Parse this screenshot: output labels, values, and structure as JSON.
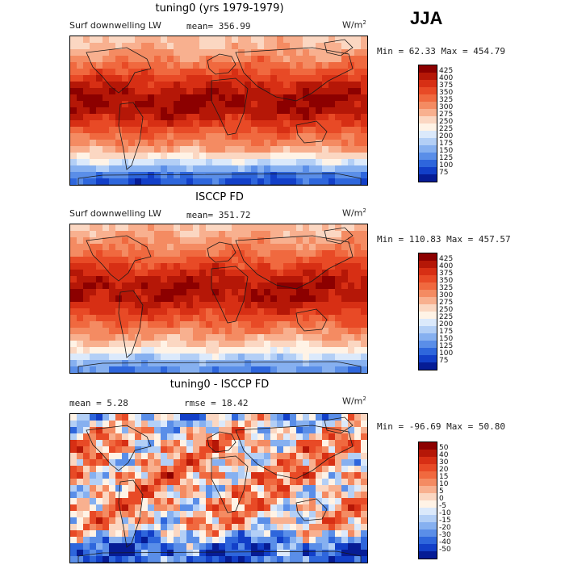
{
  "season": "JJA",
  "panels": [
    {
      "title": "tuning0 (yrs 1979-1979)",
      "variable": "Surf downwelling LW",
      "mean_text": "mean= 356.99",
      "rmse_text": "",
      "units": "W/m",
      "units_sup": "2",
      "minmax": "Min =  62.33 Max = 454.79",
      "colorbar": {
        "labels": [
          "425",
          "400",
          "375",
          "350",
          "325",
          "300",
          "275",
          "250",
          "225",
          "200",
          "175",
          "150",
          "125",
          "100",
          "75"
        ],
        "colors": [
          "#8c0000",
          "#b51707",
          "#d72f14",
          "#e84a26",
          "#f0693f",
          "#f48b62",
          "#f8b08f",
          "#fbd7c2",
          "#fff3e6",
          "#dbe9fb",
          "#b3cff6",
          "#86b0f0",
          "#5a8ee8",
          "#2e66dc",
          "#123fc8",
          "#061c95"
        ]
      },
      "chart_data": {
        "type": "heatmap",
        "title": "tuning0 (yrs 1979-1979)",
        "variable": "Surf downwelling LW",
        "units": "W/m2",
        "mean": 356.99,
        "min": 62.33,
        "max": 454.79,
        "levels": [
          75,
          100,
          125,
          150,
          175,
          200,
          225,
          250,
          275,
          300,
          325,
          350,
          375,
          400,
          425
        ],
        "zonal_profile": {
          "lat": [
            -90,
            -75,
            -60,
            -45,
            -30,
            -15,
            0,
            15,
            30,
            45,
            60,
            75,
            90
          ],
          "value": [
            90,
            130,
            230,
            300,
            340,
            380,
            420,
            425,
            400,
            360,
            320,
            290,
            270
          ]
        }
      }
    },
    {
      "title": "ISCCP FD",
      "variable": "Surf downwelling LW",
      "mean_text": "mean= 351.72",
      "rmse_text": "",
      "units": "W/m",
      "units_sup": "2",
      "minmax": "Min = 110.83 Max = 457.57",
      "colorbar": {
        "labels": [
          "425",
          "400",
          "375",
          "350",
          "325",
          "300",
          "275",
          "250",
          "225",
          "200",
          "175",
          "150",
          "125",
          "100",
          "75"
        ],
        "colors": [
          "#8c0000",
          "#b51707",
          "#d72f14",
          "#e84a26",
          "#f0693f",
          "#f48b62",
          "#f8b08f",
          "#fbd7c2",
          "#fff3e6",
          "#dbe9fb",
          "#b3cff6",
          "#86b0f0",
          "#5a8ee8",
          "#2e66dc",
          "#123fc8",
          "#061c95"
        ]
      },
      "chart_data": {
        "type": "heatmap",
        "title": "ISCCP FD",
        "variable": "Surf downwelling LW",
        "units": "W/m2",
        "mean": 351.72,
        "min": 110.83,
        "max": 457.57,
        "levels": [
          75,
          100,
          125,
          150,
          175,
          200,
          225,
          250,
          275,
          300,
          325,
          350,
          375,
          400,
          425
        ],
        "zonal_profile": {
          "lat": [
            -90,
            -75,
            -60,
            -45,
            -30,
            -15,
            0,
            15,
            30,
            45,
            60,
            75,
            90
          ],
          "value": [
            130,
            170,
            250,
            300,
            340,
            380,
            415,
            420,
            395,
            355,
            320,
            295,
            275
          ]
        }
      }
    },
    {
      "title": "tuning0 - ISCCP FD",
      "variable": "",
      "mean_text": "mean =    5.28",
      "rmse_text": "rmse =   18.42",
      "units": "W/m",
      "units_sup": "2",
      "minmax": "Min = -96.69 Max =  50.80",
      "colorbar": {
        "labels": [
          "50",
          "40",
          "30",
          "20",
          "15",
          "10",
          "5",
          "0",
          "-5",
          "-10",
          "-15",
          "-20",
          "-30",
          "-40",
          "-50"
        ],
        "colors": [
          "#8c0000",
          "#b51707",
          "#d72f14",
          "#e84a26",
          "#f0693f",
          "#f48b62",
          "#f8b08f",
          "#fbd7c2",
          "#fff3e6",
          "#dbe9fb",
          "#b3cff6",
          "#86b0f0",
          "#5a8ee8",
          "#2e66dc",
          "#123fc8",
          "#061c95"
        ]
      },
      "chart_data": {
        "type": "heatmap",
        "title": "tuning0 - ISCCP FD",
        "units": "W/m2",
        "mean": 5.28,
        "rmse": 18.42,
        "min": -96.69,
        "max": 50.8,
        "levels": [
          -50,
          -40,
          -30,
          -20,
          -15,
          -10,
          -5,
          0,
          5,
          10,
          15,
          20,
          30,
          40,
          50
        ],
        "zonal_profile": {
          "lat": [
            -90,
            -75,
            -60,
            -45,
            -30,
            -15,
            0,
            15,
            30,
            45,
            60,
            75,
            90
          ],
          "value": [
            -30,
            -40,
            -20,
            5,
            5,
            8,
            5,
            12,
            5,
            8,
            6,
            -5,
            -15
          ]
        }
      }
    }
  ]
}
